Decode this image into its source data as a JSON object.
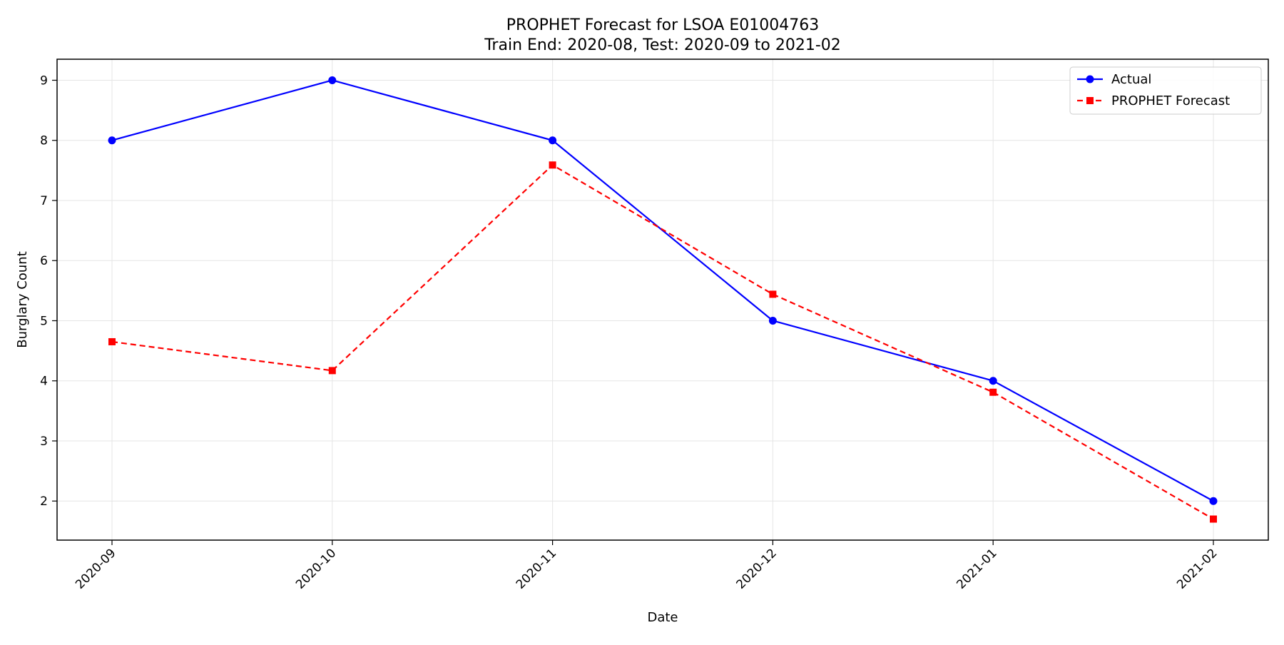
{
  "chart_data": {
    "type": "line",
    "title": "PROPHET Forecast for LSOA E01004763",
    "subtitle": "Train End: 2020-08, Test: 2020-09 to 2021-02",
    "xlabel": "Date",
    "ylabel": "Burglary Count",
    "categories": [
      "2020-09",
      "2020-10",
      "2020-11",
      "2020-12",
      "2021-01",
      "2021-02"
    ],
    "yticks": [
      2,
      3,
      4,
      5,
      6,
      7,
      8,
      9
    ],
    "ylim": [
      1.35,
      9.35
    ],
    "grid": true,
    "legend_position": "top-right",
    "series": [
      {
        "name": "Actual",
        "values": [
          8,
          9,
          8,
          5,
          4,
          2
        ],
        "color": "#0000ff",
        "style": "solid",
        "marker": "circle"
      },
      {
        "name": "PROPHET Forecast",
        "values": [
          4.65,
          4.17,
          7.59,
          5.44,
          3.81,
          1.7
        ],
        "color": "#ff0000",
        "style": "dashed",
        "marker": "square"
      }
    ]
  }
}
